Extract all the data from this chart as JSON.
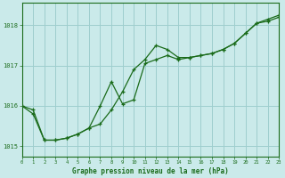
{
  "title": "Graphe pression niveau de la mer (hPa)",
  "bg_color": "#caeaea",
  "grid_color": "#9ecece",
  "line_color": "#1a6b1a",
  "line1_x": [
    0,
    1,
    2,
    3,
    4,
    5,
    6,
    7,
    8,
    9,
    10,
    11,
    12,
    13,
    14,
    15,
    16,
    17,
    18,
    19,
    20,
    21,
    22,
    23
  ],
  "line1_y": [
    1016.0,
    1015.9,
    1015.15,
    1015.15,
    1015.2,
    1015.3,
    1015.45,
    1015.55,
    1015.9,
    1016.35,
    1016.9,
    1017.15,
    1017.5,
    1017.4,
    1017.2,
    1017.2,
    1017.25,
    1017.3,
    1017.4,
    1017.55,
    1017.8,
    1018.05,
    1018.1,
    1018.2
  ],
  "line2_x": [
    0,
    1,
    2,
    3,
    4,
    5,
    6,
    7,
    8,
    9,
    10,
    11,
    12,
    13,
    14,
    15,
    16,
    17,
    18,
    19,
    20,
    21,
    22,
    23
  ],
  "line2_y": [
    1016.0,
    1015.8,
    1015.15,
    1015.15,
    1015.2,
    1015.3,
    1015.45,
    1016.0,
    1016.6,
    1016.05,
    1016.15,
    1017.05,
    1017.15,
    1017.25,
    1017.15,
    1017.2,
    1017.25,
    1017.3,
    1017.4,
    1017.55,
    1017.8,
    1018.05,
    1018.15,
    1018.25
  ],
  "ylim": [
    1014.75,
    1018.55
  ],
  "yticks": [
    1015,
    1016,
    1017,
    1018
  ],
  "xlim": [
    0,
    23
  ],
  "xticks": [
    0,
    1,
    2,
    3,
    4,
    5,
    6,
    7,
    8,
    9,
    10,
    11,
    12,
    13,
    14,
    15,
    16,
    17,
    18,
    19,
    20,
    21,
    22,
    23
  ]
}
